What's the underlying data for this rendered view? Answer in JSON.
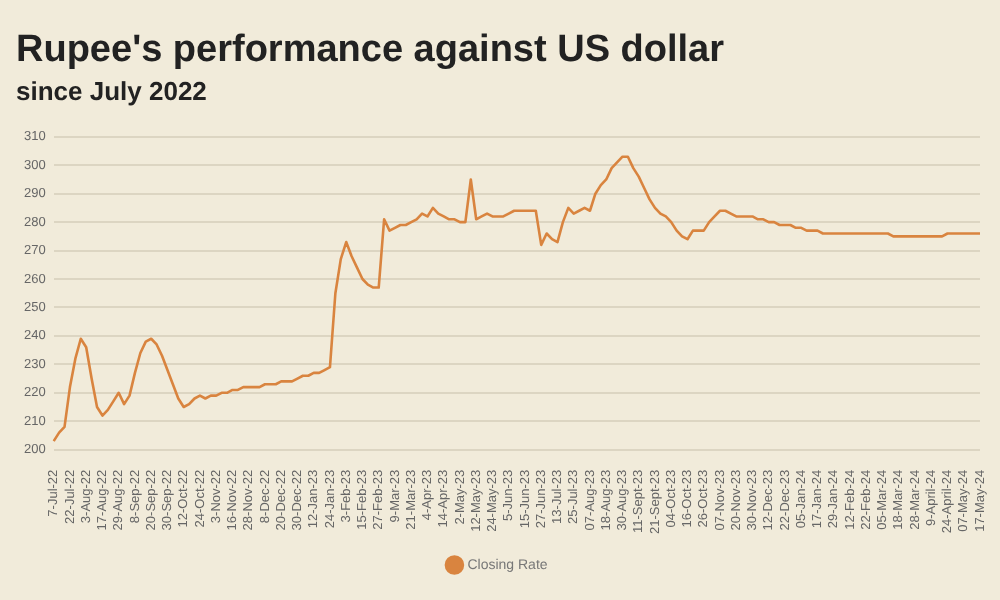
{
  "chart_data": {
    "type": "line",
    "title": "Rupee's performance against US dollar",
    "subtitle": "since July 2022",
    "categories": [
      "7-Jul-22",
      null,
      null,
      "22-Jul-22",
      null,
      null,
      "3-Aug-22",
      null,
      null,
      "17-Aug-22",
      null,
      null,
      "29-Aug-22",
      null,
      null,
      "8-Sep-22",
      null,
      null,
      "20-Sep-22",
      null,
      null,
      "30-Sep-22",
      null,
      null,
      "12-Oct-22",
      null,
      null,
      "24-Oct-22",
      null,
      null,
      "3-Nov-22",
      null,
      null,
      "16-Nov-22",
      null,
      null,
      "28-Nov-22",
      null,
      null,
      "8-Dec-22",
      null,
      null,
      "20-Dec-22",
      null,
      null,
      "30-Dec-22",
      null,
      null,
      "12-Jan-23",
      null,
      null,
      "24-Jan-23",
      null,
      null,
      "3-Feb-23",
      null,
      null,
      "15-Feb-23",
      null,
      null,
      "27-Feb-23",
      null,
      null,
      "9-Mar-23",
      null,
      null,
      "21-Mar-23",
      null,
      null,
      "4-Apr-23",
      null,
      null,
      "14-Apr-23",
      null,
      null,
      "2-May-23",
      null,
      null,
      "12-May-23",
      null,
      null,
      "24-May-23",
      null,
      null,
      "5-Jun-23",
      null,
      null,
      "15-Jun-23",
      null,
      null,
      "27-Jun-23",
      null,
      null,
      "13-Jul-23",
      null,
      null,
      "25-Jul-23",
      null,
      null,
      "07-Aug-23",
      null,
      null,
      "18-Aug-23",
      null,
      null,
      "30-Aug-23",
      null,
      null,
      "11-Sept-23",
      null,
      null,
      "21-Sept-23",
      null,
      null,
      "04-Oct-23",
      null,
      null,
      "16-Oct-23",
      null,
      null,
      "26-Oct-23",
      null,
      null,
      "07-Nov-23",
      null,
      null,
      "20-Nov-23",
      null,
      null,
      "30-Nov-23",
      null,
      null,
      "12-Dec-23",
      null,
      null,
      "22-Dec-23",
      null,
      null,
      "05-Jan-24",
      null,
      null,
      "17-Jan-24",
      null,
      null,
      "29-Jan-24",
      null,
      null,
      "12-Feb-24",
      null,
      null,
      "22-Feb-24",
      null,
      null,
      "05-Mar-24",
      null,
      null,
      "18-Mar-24",
      null,
      null,
      "28-Mar-24",
      null,
      null,
      "9-April-24",
      null,
      null,
      "24-April-24",
      null,
      null,
      "07-May-24",
      null,
      null,
      "17-May-24"
    ],
    "series": [
      {
        "name": "Closing Rate",
        "color": "#d9843f",
        "values": [
          203,
          206,
          208,
          222,
          232,
          239,
          236,
          225,
          215,
          212,
          214,
          217,
          220,
          216,
          219,
          227,
          234,
          238,
          239,
          237,
          233,
          228,
          223,
          218,
          215,
          216,
          218,
          219,
          218,
          219,
          219,
          220,
          220,
          221,
          221,
          222,
          222,
          222,
          222,
          223,
          223,
          223,
          224,
          224,
          224,
          225,
          226,
          226,
          227,
          227,
          228,
          229,
          255,
          267,
          273,
          268,
          264,
          260,
          258,
          257,
          257,
          281,
          277,
          278,
          279,
          279,
          280,
          281,
          283,
          282,
          285,
          283,
          282,
          281,
          281,
          280,
          280,
          295,
          281,
          282,
          283,
          282,
          282,
          282,
          283,
          284,
          284,
          284,
          284,
          284,
          272,
          276,
          274,
          273,
          280,
          285,
          283,
          284,
          285,
          284,
          290,
          293,
          295,
          299,
          301,
          303,
          303,
          299,
          296,
          292,
          288,
          285,
          283,
          282,
          280,
          277,
          275,
          274,
          277,
          277,
          277,
          280,
          282,
          284,
          284,
          283,
          282,
          282,
          282,
          282,
          281,
          281,
          280,
          280,
          279,
          279,
          279,
          278,
          278,
          277,
          277,
          277,
          276,
          276,
          276,
          276,
          276,
          276,
          276,
          276,
          276,
          276,
          276,
          276,
          276,
          275,
          275,
          275,
          275,
          275,
          275,
          275,
          275,
          275,
          275,
          276,
          276,
          276,
          276,
          276,
          276,
          276
        ]
      }
    ],
    "ylim": [
      200,
      310
    ],
    "yticks": [
      200,
      210,
      220,
      230,
      240,
      250,
      260,
      270,
      280,
      290,
      300,
      310
    ],
    "grid": "y",
    "legend": "bottom"
  }
}
